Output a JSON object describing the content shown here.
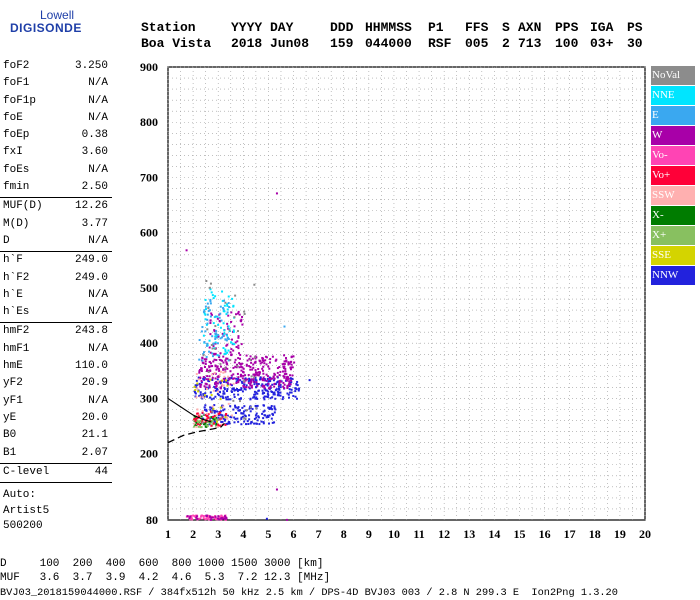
{
  "logo": {
    "top": "Lowell",
    "main": "DIGISONDE"
  },
  "header": {
    "row1": [
      "Station",
      "YYYY DAY",
      "DDD",
      "HHMMSS",
      "P1",
      "FFS",
      "S",
      "AXN",
      "PPS",
      "IGA",
      "PS"
    ],
    "row2": [
      "Boa Vista",
      "2018 Jun08",
      "159",
      "044000",
      "RSF",
      "005",
      "2",
      "713",
      "100",
      "03+",
      "30"
    ]
  },
  "params": {
    "group1": [
      {
        "k": "foF2",
        "v": "3.250"
      },
      {
        "k": "foF1",
        "v": "N/A"
      },
      {
        "k": "foF1p",
        "v": "N/A"
      },
      {
        "k": "foE",
        "v": "N/A"
      },
      {
        "k": "foEp",
        "v": "0.38"
      },
      {
        "k": "fxI",
        "v": "3.60"
      },
      {
        "k": "foEs",
        "v": "N/A"
      },
      {
        "k": "fmin",
        "v": "2.50"
      }
    ],
    "group2": [
      {
        "k": "MUF(D)",
        "v": "12.26"
      },
      {
        "k": "M(D)",
        "v": "3.77"
      },
      {
        "k": "D",
        "v": "N/A"
      }
    ],
    "group3": [
      {
        "k": "h`F",
        "v": "249.0"
      },
      {
        "k": "h`F2",
        "v": "249.0"
      },
      {
        "k": "h`E",
        "v": "N/A"
      },
      {
        "k": "h`Es",
        "v": "N/A"
      }
    ],
    "group4": [
      {
        "k": "hmF2",
        "v": "243.8"
      },
      {
        "k": "hmF1",
        "v": "N/A"
      },
      {
        "k": "hmE",
        "v": "110.0"
      },
      {
        "k": "yF2",
        "v": "20.9"
      },
      {
        "k": "yF1",
        "v": "N/A"
      },
      {
        "k": "yE",
        "v": "20.0"
      },
      {
        "k": "B0",
        "v": "21.1"
      },
      {
        "k": "B1",
        "v": "2.07"
      }
    ],
    "group5": [
      {
        "k": "C-level",
        "v": "44"
      }
    ],
    "auto": [
      "Auto:",
      "Artist5",
      "500200"
    ]
  },
  "bottom": {
    "d_row": "D     100  200  400  600  800 1000 1500 3000 [km]",
    "muf_row": "MUF   3.6  3.7  3.9  4.2  4.6  5.3  7.2 12.3 [MHz]",
    "file_row": "BVJ03_2018159044000.RSF / 384fx512h 50 kHz 2.5 km / DPS-4D BVJ03 003 / 2.8 N 299.3 E  Ion2Png 1.3.20"
  },
  "legend": [
    {
      "label": "NoVal",
      "color": "#8c8c8c"
    },
    {
      "label": "NNE",
      "color": "#00e5ff"
    },
    {
      "label": "E",
      "color": "#3aa8f0"
    },
    {
      "label": "W",
      "color": "#a800a8"
    },
    {
      "label": "Vo-",
      "color": "#ff44b4"
    },
    {
      "label": "Vo+",
      "color": "#ff0038"
    },
    {
      "label": "SSW",
      "color": "#ffb0b0"
    },
    {
      "label": "X-",
      "color": "#007c00"
    },
    {
      "label": "X+",
      "color": "#88c060"
    },
    {
      "label": "SSE",
      "color": "#d4d400"
    },
    {
      "label": "NNW",
      "color": "#2222dd"
    }
  ],
  "chart_data": {
    "type": "scatter",
    "xlim": [
      1,
      20
    ],
    "ylim": [
      80,
      900
    ],
    "x_ticks": [
      1,
      2,
      3,
      4,
      5,
      6,
      7,
      8,
      9,
      10,
      11,
      12,
      13,
      14,
      15,
      16,
      17,
      18,
      19,
      20
    ],
    "y_ticks": [
      80,
      200,
      300,
      400,
      500,
      600,
      700,
      800,
      900
    ],
    "grid": true,
    "legend_position": "right",
    "trace_O": [
      [
        1.0,
        220
      ],
      [
        1.6,
        233
      ],
      [
        2.2,
        240
      ],
      [
        2.8,
        245
      ],
      [
        3.1,
        248
      ],
      [
        3.25,
        255
      ]
    ],
    "trace_bend": [
      [
        1.0,
        300
      ],
      [
        1.5,
        285
      ],
      [
        2.0,
        270
      ],
      [
        2.4,
        262
      ],
      [
        2.7,
        258
      ]
    ],
    "clusters": [
      {
        "series": "NNW",
        "x": [
          2.0,
          6.2
        ],
        "y": [
          300,
          340
        ],
        "n": 260
      },
      {
        "series": "W",
        "x": [
          2.2,
          6.0
        ],
        "y": [
          320,
          380
        ],
        "n": 320
      },
      {
        "series": "W",
        "x": [
          2.6,
          4.0
        ],
        "y": [
          380,
          460
        ],
        "n": 70
      },
      {
        "series": "NNE",
        "x": [
          2.3,
          3.6
        ],
        "y": [
          380,
          500
        ],
        "n": 60
      },
      {
        "series": "E",
        "x": [
          2.2,
          3.4
        ],
        "y": [
          370,
          490
        ],
        "n": 60
      },
      {
        "series": "NNW",
        "x": [
          2.3,
          5.3
        ],
        "y": [
          255,
          290
        ],
        "n": 160
      },
      {
        "series": "X-",
        "x": [
          2.0,
          2.9
        ],
        "y": [
          250,
          272
        ],
        "n": 45
      },
      {
        "series": "X+",
        "x": [
          2.0,
          3.0
        ],
        "y": [
          248,
          270
        ],
        "n": 30
      },
      {
        "series": "Vo+",
        "x": [
          2.0,
          3.3
        ],
        "y": [
          252,
          278
        ],
        "n": 45
      },
      {
        "series": "SSW",
        "x": [
          2.0,
          3.6
        ],
        "y": [
          250,
          350
        ],
        "n": 40
      },
      {
        "series": "SSE",
        "x": [
          2.0,
          3.4
        ],
        "y": [
          255,
          340
        ],
        "n": 15
      },
      {
        "series": "NoVal",
        "x": [
          2.2,
          4.5
        ],
        "y": [
          255,
          520
        ],
        "n": 40
      },
      {
        "series": "Vo-",
        "x": [
          1.7,
          3.3
        ],
        "y": [
          82,
          90
        ],
        "n": 60
      },
      {
        "series": "W",
        "x": [
          1.7,
          3.3
        ],
        "y": [
          82,
          90
        ],
        "n": 30
      }
    ],
    "outliers": [
      {
        "series": "W",
        "x": 1.7,
        "y": 570
      },
      {
        "series": "W",
        "x": 5.3,
        "y": 673
      },
      {
        "series": "W",
        "x": 5.3,
        "y": 137
      },
      {
        "series": "NNW",
        "x": 6.6,
        "y": 335
      },
      {
        "series": "E",
        "x": 5.6,
        "y": 432
      },
      {
        "series": "NNW",
        "x": 4.9,
        "y": 84
      },
      {
        "series": "W",
        "x": 5.7,
        "y": 82
      }
    ]
  }
}
